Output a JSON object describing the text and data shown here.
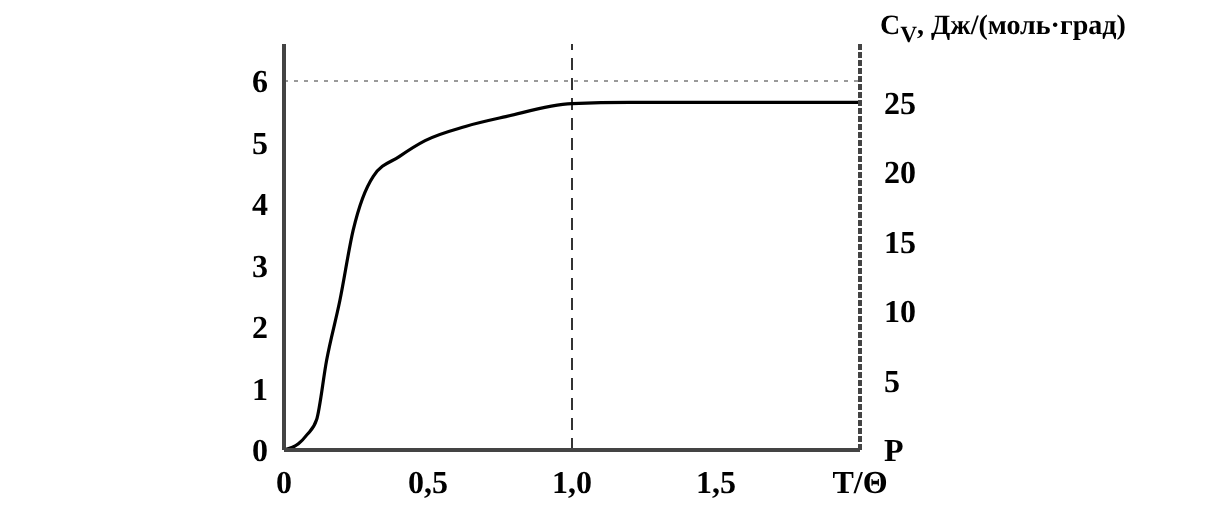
{
  "chart_data": {
    "type": "line",
    "y2label": "C$_{V}$, Дж/(моль·град)",
    "x": [
      0,
      0.05,
      0.08,
      0.113,
      0.148,
      0.194,
      0.24,
      0.31,
      0.4,
      0.49,
      0.63,
      0.77,
      1.0,
      1.2,
      1.5,
      1.8,
      2.0
    ],
    "series": [
      {
        "color": "#000000",
        "values": [
          0,
          0.1,
          0.25,
          0.49,
          1.46,
          2.43,
          3.57,
          4.45,
          4.77,
          5.03,
          5.26,
          5.42,
          5.63,
          5.65,
          5.65,
          5.65,
          5.65
        ]
      }
    ],
    "xlim": [
      0,
      2
    ],
    "xticks": [
      0,
      {
        "value": 0.5,
        "label": "0,5"
      },
      {
        "value": 1,
        "label": "1,0"
      },
      {
        "value": 1.5,
        "label": "1,5"
      },
      {
        "value": 2,
        "label": "T/Θ"
      }
    ],
    "ylim": [
      0,
      6.6
    ],
    "yticks": [
      0,
      1,
      2,
      3,
      4,
      5,
      6
    ],
    "y2lim": [
      0,
      29.2
    ],
    "y2ticks": [
      {
        "value": 0,
        "label": "P"
      },
      5,
      10,
      15,
      20,
      25
    ],
    "ref_lines": [
      {
        "axis": "y",
        "value": 6,
        "color": "#999999",
        "line_style": "dotted"
      },
      {
        "axis": "x",
        "value": 1,
        "color": "#333333",
        "line_style": "dashed"
      }
    ],
    "grid": false,
    "legend": false,
    "marker": "none",
    "line_style": "solid"
  }
}
